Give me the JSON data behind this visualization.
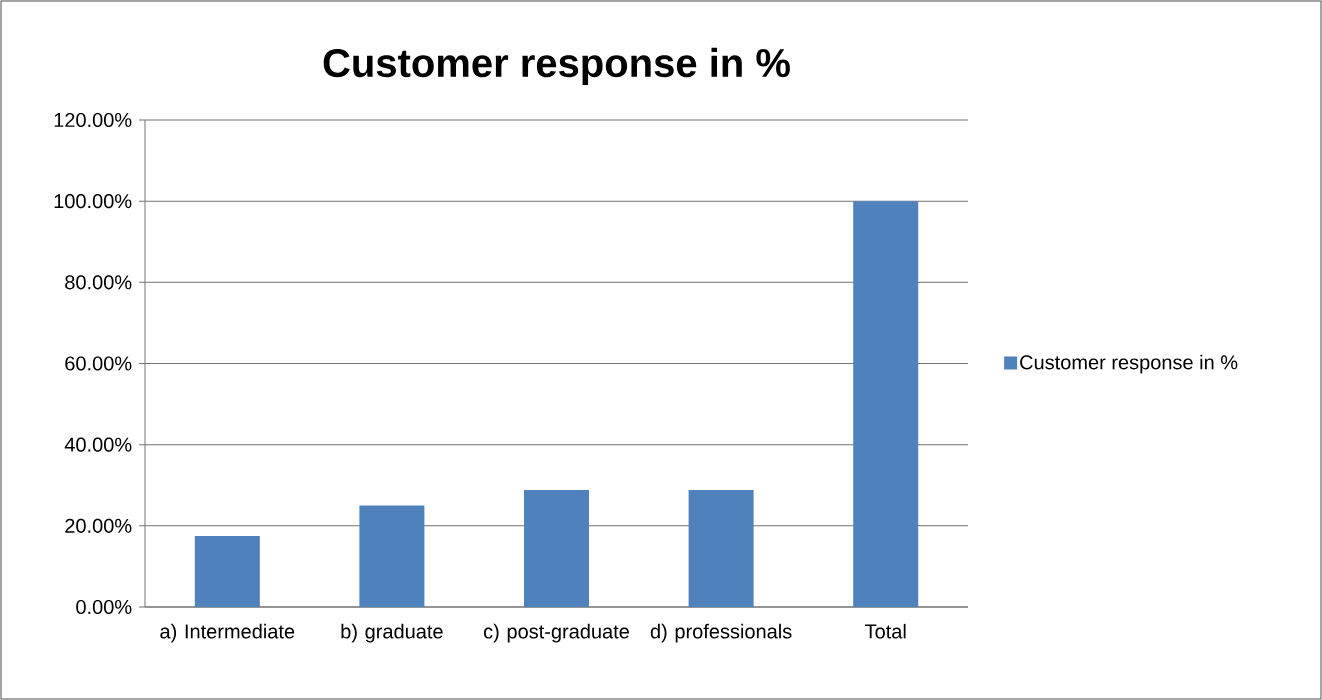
{
  "chart_data": {
    "type": "bar",
    "title": "Customer response in %",
    "categories": [
      "a) Intermediate",
      "b) graduate",
      "c) post-graduate",
      "d) professionals",
      "Total"
    ],
    "series": [
      {
        "name": "Customer response in %",
        "color": "#4f81bd",
        "values": [
          17.5,
          25,
          28.8,
          28.8,
          100
        ]
      }
    ],
    "ylim": [
      0,
      120
    ],
    "yticks": [
      {
        "value": 0,
        "label": "0.00%"
      },
      {
        "value": 20,
        "label": "20.00%"
      },
      {
        "value": 40,
        "label": "40.00%"
      },
      {
        "value": 60,
        "label": "60.00%"
      },
      {
        "value": 80,
        "label": "80.00%"
      },
      {
        "value": 100,
        "label": "100.00%"
      },
      {
        "value": 120,
        "label": "120.00%"
      }
    ],
    "grid": "y",
    "legend": "right"
  }
}
